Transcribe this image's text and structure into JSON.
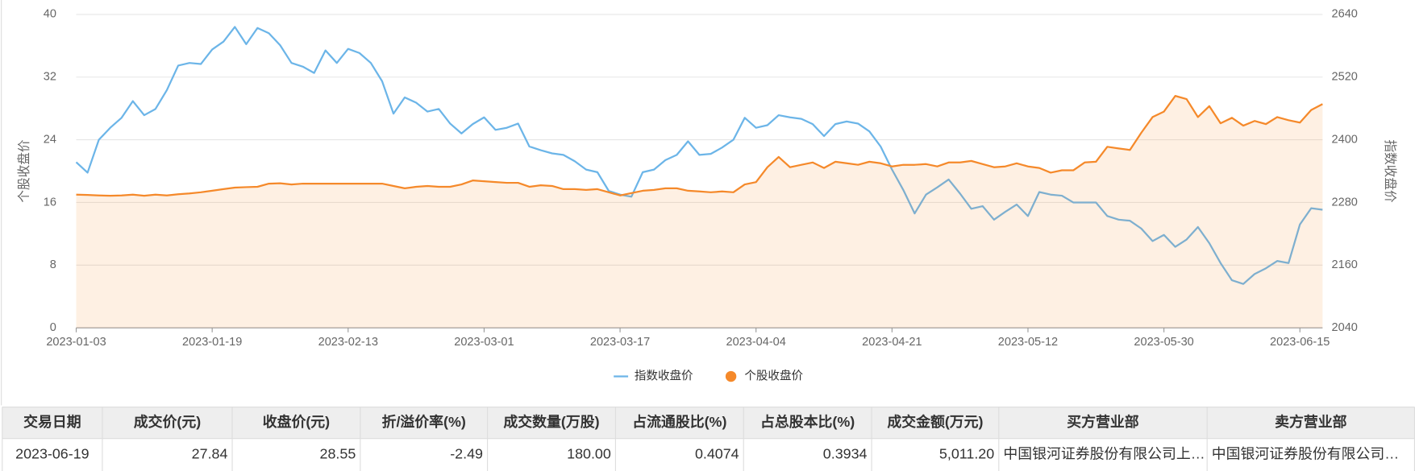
{
  "chart_data": {
    "type": "line",
    "ylabel": "个股收盘价",
    "y2label": "指数收盘价",
    "categories": [
      "2023-01-03",
      null,
      null,
      null,
      null,
      null,
      null,
      null,
      null,
      null,
      null,
      null,
      "2023-01-19",
      null,
      null,
      null,
      null,
      null,
      null,
      null,
      null,
      null,
      null,
      null,
      "2023-02-13",
      null,
      null,
      null,
      null,
      null,
      null,
      null,
      null,
      null,
      null,
      null,
      "2023-03-01",
      null,
      null,
      null,
      null,
      null,
      null,
      null,
      null,
      null,
      null,
      null,
      "2023-03-17",
      null,
      null,
      null,
      null,
      null,
      null,
      null,
      null,
      null,
      null,
      null,
      "2023-04-04",
      null,
      null,
      null,
      null,
      null,
      null,
      null,
      null,
      null,
      null,
      null,
      "2023-04-21",
      null,
      null,
      null,
      null,
      null,
      null,
      null,
      null,
      null,
      null,
      null,
      "2023-05-12",
      null,
      null,
      null,
      null,
      null,
      null,
      null,
      null,
      null,
      null,
      null,
      "2023-05-30",
      null,
      null,
      null,
      null,
      null,
      null,
      null,
      null,
      null,
      null,
      null,
      "2023-06-15",
      null,
      null
    ],
    "series": [
      {
        "name": "指数收盘价",
        "color": "#6cb5e8",
        "axis": "y2",
        "values": [
          2357,
          2337,
          2400,
          2423,
          2442,
          2474,
          2447,
          2459,
          2495,
          2542,
          2547,
          2545,
          2573,
          2588,
          2616,
          2583,
          2614,
          2604,
          2581,
          2547,
          2540,
          2528,
          2571,
          2547,
          2574,
          2566,
          2547,
          2512,
          2450,
          2481,
          2471,
          2454,
          2459,
          2431,
          2412,
          2430,
          2443,
          2419,
          2423,
          2431,
          2387,
          2380,
          2374,
          2371,
          2359,
          2343,
          2338,
          2302,
          2295,
          2291,
          2338,
          2343,
          2361,
          2371,
          2397,
          2371,
          2373,
          2385,
          2400,
          2442,
          2423,
          2428,
          2447,
          2443,
          2440,
          2430,
          2407,
          2430,
          2435,
          2431,
          2416,
          2387,
          2343,
          2304,
          2259,
          2295,
          2309,
          2324,
          2297,
          2268,
          2273,
          2247,
          2262,
          2276,
          2254,
          2300,
          2295,
          2293,
          2280,
          2280,
          2280,
          2254,
          2247,
          2245,
          2230,
          2206,
          2218,
          2195,
          2209,
          2233,
          2202,
          2164,
          2131,
          2124,
          2143,
          2154,
          2168,
          2164,
          2238,
          2269,
          2266
        ]
      },
      {
        "name": "个股收盘价",
        "color": "#f5892a",
        "area": true,
        "values": [
          17.0,
          16.95,
          16.9,
          16.85,
          16.9,
          17.0,
          16.85,
          17.0,
          16.9,
          17.05,
          17.15,
          17.3,
          17.5,
          17.7,
          17.9,
          17.95,
          18.0,
          18.4,
          18.45,
          18.3,
          18.4,
          18.4,
          18.4,
          18.4,
          18.4,
          18.4,
          18.4,
          18.4,
          18.1,
          17.8,
          18.0,
          18.1,
          18.0,
          18.0,
          18.3,
          18.8,
          18.7,
          18.6,
          18.5,
          18.5,
          18.0,
          18.2,
          18.1,
          17.7,
          17.7,
          17.6,
          17.7,
          17.3,
          16.9,
          17.2,
          17.5,
          17.6,
          17.8,
          17.8,
          17.5,
          17.4,
          17.3,
          17.4,
          17.3,
          18.3,
          18.6,
          20.5,
          21.8,
          20.5,
          20.8,
          21.1,
          20.4,
          21.2,
          21.0,
          20.8,
          21.2,
          21.0,
          20.6,
          20.8,
          20.8,
          20.9,
          20.6,
          21.1,
          21.1,
          21.3,
          20.9,
          20.5,
          20.6,
          21.0,
          20.6,
          20.4,
          19.8,
          20.1,
          20.1,
          21.1,
          21.2,
          23.1,
          22.9,
          22.7,
          24.9,
          26.9,
          27.6,
          29.6,
          29.2,
          26.9,
          28.3,
          26.1,
          26.8,
          25.8,
          26.4,
          26.0,
          26.9,
          26.5,
          26.2,
          27.8,
          28.55
        ]
      }
    ],
    "ylim": [
      0,
      40
    ],
    "yticks": [
      0,
      8,
      16,
      24,
      32,
      40
    ],
    "y2lim": [
      2040,
      2640
    ],
    "y2ticks": [
      2040,
      2160,
      2280,
      2400,
      2520,
      2640
    ],
    "grid": true,
    "legend": "bottom"
  },
  "table": {
    "headers": [
      "交易日期",
      "成交价(元)",
      "收盘价(元)",
      "折/溢价率(%)",
      "成交数量(万股)",
      "占流通股比(%)",
      "占总股本比(%)",
      "成交金额(万元)",
      "买方营业部",
      "卖方营业部"
    ],
    "rows": [
      [
        "2023-06-19",
        "27.84",
        "28.55",
        "-2.49",
        "180.00",
        "0.4074",
        "0.3934",
        "5,011.20",
        "中国银河证券股份有限公司上…",
        "中国银河证券股份有限公司…"
      ]
    ]
  }
}
